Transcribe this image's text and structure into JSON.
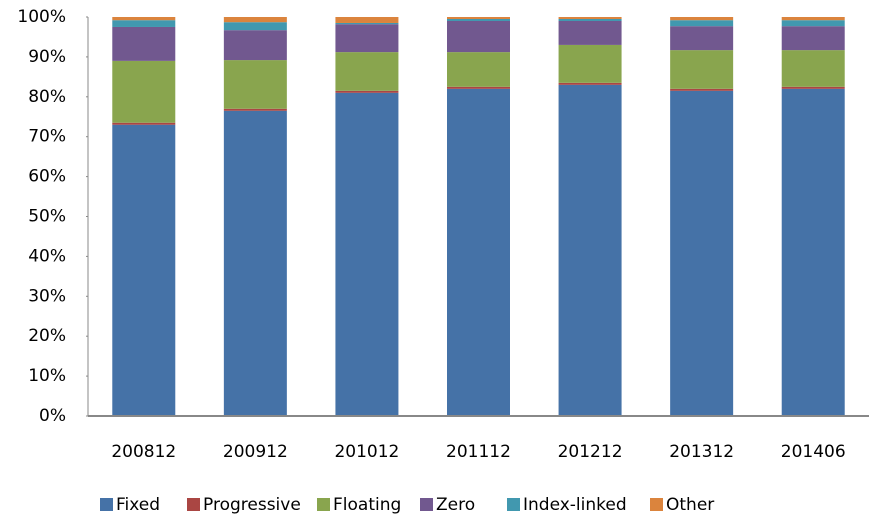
{
  "chart_data": {
    "type": "stacked_bar",
    "categories": [
      "200812",
      "200912",
      "201012",
      "201112",
      "201212",
      "201312",
      "201406"
    ],
    "series": [
      {
        "name": "Fixed",
        "color": "#4572a7",
        "values": [
          73,
          76.5,
          81,
          82,
          83,
          81.5,
          82
        ]
      },
      {
        "name": "Progressive",
        "color": "#aa4643",
        "values": [
          0.5,
          0.5,
          0.5,
          0.5,
          0.5,
          0.5,
          0.5
        ]
      },
      {
        "name": "Floating",
        "color": "#89a54e",
        "values": [
          15.5,
          12.2,
          9.7,
          8.7,
          9.5,
          9.7,
          9.2
        ]
      },
      {
        "name": "Zero",
        "color": "#71588f",
        "values": [
          8.5,
          7.5,
          7,
          7.8,
          6,
          6,
          6
        ]
      },
      {
        "name": "Index-linked",
        "color": "#4198af",
        "values": [
          1.7,
          2,
          0.3,
          0.5,
          0.5,
          1.5,
          1.5
        ]
      },
      {
        "name": "Other",
        "color": "#db843d",
        "values": [
          0.8,
          1.3,
          1.5,
          0.5,
          0.5,
          0.8,
          0.8
        ]
      }
    ],
    "ylim": [
      0,
      100
    ],
    "yticks": [
      {
        "value": 0,
        "label": "0%"
      },
      {
        "value": 10,
        "label": "10%"
      },
      {
        "value": 20,
        "label": "20%"
      },
      {
        "value": 30,
        "label": "30%"
      },
      {
        "value": 40,
        "label": "40%"
      },
      {
        "value": 50,
        "label": "50%"
      },
      {
        "value": 60,
        "label": "60%"
      },
      {
        "value": 70,
        "label": "70%"
      },
      {
        "value": 80,
        "label": "80%"
      },
      {
        "value": 90,
        "label": "90%"
      },
      {
        "value": 100,
        "label": "100%"
      }
    ],
    "grid": false,
    "legend": "bottom"
  }
}
